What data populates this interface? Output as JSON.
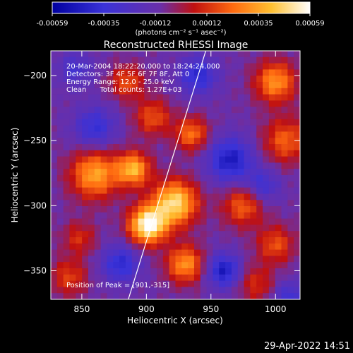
{
  "chart_data": {
    "type": "heatmap",
    "title": "Reconstructed RHESSI Image",
    "xlabel": "Heliocentric X (arcsec)",
    "ylabel": "Heliocentric Y (arcsec)",
    "xlim": [
      826,
      1019
    ],
    "ylim": [
      -372,
      -181
    ],
    "x_ticks": [
      850,
      900,
      950,
      1000
    ],
    "y_ticks": [
      -200,
      -250,
      -300,
      -350
    ],
    "colorbar": {
      "range": [
        -0.00059,
        0.00059
      ],
      "tick_labels": [
        "-0.00059",
        "-0.00035",
        "-0.00012",
        "0.00012",
        "0.00035",
        "0.00059"
      ],
      "units": "(photons cm⁻² s⁻¹ asec⁻²)",
      "colormap": [
        "#000080",
        "#3a32d8",
        "#6a2fa8",
        "#c81810",
        "#ff8c10",
        "#ffe040",
        "#ffffff"
      ]
    },
    "annotations": [
      "20-Mar-2004 18:22:20.000 to 18:24:24.000",
      "Detectors: 3F 4F 5F 6F 7F 8F, Att 0",
      "Energy Range: 12.0 - 25.0 keV",
      "Clean      Total counts: 1.27E+03",
      "Position of Peak = [901,-315]"
    ],
    "peak": {
      "x": 901,
      "y": -315
    },
    "limb_line": [
      [
        886,
        -372
      ],
      [
        946,
        -181
      ]
    ],
    "intensity_sources": [
      {
        "x": 901,
        "y": -315,
        "amp": 1.0,
        "sigma": 10
      },
      {
        "x": 922,
        "y": -298,
        "amp": 0.85,
        "sigma": 12
      },
      {
        "x": 930,
        "y": -345,
        "amp": 0.6,
        "sigma": 10
      },
      {
        "x": 890,
        "y": -272,
        "amp": 0.7,
        "sigma": 9
      },
      {
        "x": 860,
        "y": -276,
        "amp": 0.65,
        "sigma": 13
      },
      {
        "x": 935,
        "y": -245,
        "amp": 0.5,
        "sigma": 9
      },
      {
        "x": 905,
        "y": -232,
        "amp": 0.4,
        "sigma": 10
      },
      {
        "x": 1000,
        "y": -205,
        "amp": 0.6,
        "sigma": 11
      },
      {
        "x": 1008,
        "y": -250,
        "amp": 0.45,
        "sigma": 12
      },
      {
        "x": 885,
        "y": -205,
        "amp": 0.4,
        "sigma": 9
      },
      {
        "x": 975,
        "y": -300,
        "amp": 0.45,
        "sigma": 11
      },
      {
        "x": 1000,
        "y": -330,
        "amp": 0.4,
        "sigma": 10
      },
      {
        "x": 985,
        "y": -360,
        "amp": 0.3,
        "sigma": 10
      },
      {
        "x": 840,
        "y": -355,
        "amp": 0.35,
        "sigma": 10
      },
      {
        "x": 848,
        "y": -325,
        "amp": 0.3,
        "sigma": 9
      },
      {
        "x": 965,
        "y": -265,
        "amp": -0.55,
        "sigma": 12
      },
      {
        "x": 940,
        "y": -200,
        "amp": -0.45,
        "sigma": 10
      },
      {
        "x": 860,
        "y": -240,
        "amp": -0.4,
        "sigma": 11
      },
      {
        "x": 880,
        "y": -345,
        "amp": -0.45,
        "sigma": 10
      },
      {
        "x": 960,
        "y": -350,
        "amp": -0.55,
        "sigma": 9
      },
      {
        "x": 990,
        "y": -285,
        "amp": -0.35,
        "sigma": 9
      },
      {
        "x": 845,
        "y": -195,
        "amp": -0.3,
        "sigma": 9
      },
      {
        "x": 1010,
        "y": -370,
        "amp": -0.35,
        "sigma": 8
      }
    ]
  },
  "footer": {
    "timestamp": "29-Apr-2022 14:51"
  }
}
